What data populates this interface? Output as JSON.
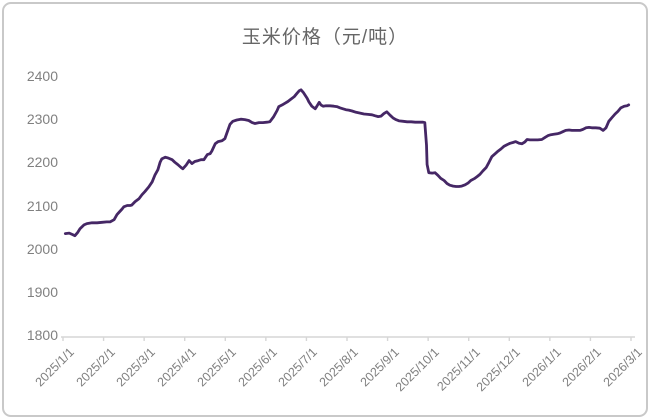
{
  "chart_data": {
    "type": "line",
    "title": "玉米价格（元/吨）",
    "series_name": "玉米价格",
    "unit": "元/吨",
    "line_color": "#452765",
    "axis_color": "#d6d6d6",
    "label_color": "#808080",
    "title_color": "#666666",
    "grid": false,
    "legend": "none",
    "ylim": [
      1800,
      2400
    ],
    "y_ticks": [
      2400,
      2300,
      2200,
      2100,
      2000,
      1900,
      1800
    ],
    "x_ticks": [
      "2025/1/1",
      "2025/2/1",
      "2025/3/1",
      "2025/4/1",
      "2025/5/1",
      "2025/6/1",
      "2025/7/1",
      "2025/8/1",
      "2025/9/1",
      "2025/10/1",
      "2025/11/1",
      "2025/12/1",
      "2026/1/1",
      "2026/2/1",
      "2026/3/1"
    ],
    "points": [
      [
        0.004,
        2035
      ],
      [
        0.011,
        2036
      ],
      [
        0.016,
        2033
      ],
      [
        0.021,
        2030
      ],
      [
        0.026,
        2038
      ],
      [
        0.03,
        2046
      ],
      [
        0.037,
        2055
      ],
      [
        0.042,
        2058
      ],
      [
        0.051,
        2060
      ],
      [
        0.06,
        2060
      ],
      [
        0.069,
        2061
      ],
      [
        0.077,
        2062
      ],
      [
        0.083,
        2062
      ],
      [
        0.09,
        2067
      ],
      [
        0.095,
        2079
      ],
      [
        0.1,
        2086
      ],
      [
        0.104,
        2092
      ],
      [
        0.107,
        2097
      ],
      [
        0.113,
        2100
      ],
      [
        0.118,
        2100
      ],
      [
        0.121,
        2101
      ],
      [
        0.127,
        2109
      ],
      [
        0.134,
        2116
      ],
      [
        0.139,
        2125
      ],
      [
        0.144,
        2132
      ],
      [
        0.151,
        2143
      ],
      [
        0.157,
        2155
      ],
      [
        0.162,
        2171
      ],
      [
        0.167,
        2183
      ],
      [
        0.171,
        2200
      ],
      [
        0.174,
        2208
      ],
      [
        0.18,
        2212
      ],
      [
        0.185,
        2210
      ],
      [
        0.192,
        2206
      ],
      [
        0.197,
        2200
      ],
      [
        0.202,
        2195
      ],
      [
        0.208,
        2188
      ],
      [
        0.211,
        2185
      ],
      [
        0.217,
        2194
      ],
      [
        0.222,
        2204
      ],
      [
        0.227,
        2197
      ],
      [
        0.232,
        2202
      ],
      [
        0.238,
        2204
      ],
      [
        0.243,
        2206
      ],
      [
        0.248,
        2206
      ],
      [
        0.254,
        2218
      ],
      [
        0.259,
        2220
      ],
      [
        0.262,
        2226
      ],
      [
        0.268,
        2243
      ],
      [
        0.273,
        2248
      ],
      [
        0.28,
        2250
      ],
      [
        0.285,
        2255
      ],
      [
        0.289,
        2270
      ],
      [
        0.294,
        2288
      ],
      [
        0.299,
        2295
      ],
      [
        0.306,
        2298
      ],
      [
        0.313,
        2300
      ],
      [
        0.32,
        2299
      ],
      [
        0.327,
        2297
      ],
      [
        0.333,
        2292
      ],
      [
        0.338,
        2290
      ],
      [
        0.345,
        2292
      ],
      [
        0.352,
        2292
      ],
      [
        0.359,
        2293
      ],
      [
        0.364,
        2294
      ],
      [
        0.371,
        2306
      ],
      [
        0.377,
        2320
      ],
      [
        0.38,
        2329
      ],
      [
        0.386,
        2333
      ],
      [
        0.391,
        2337
      ],
      [
        0.396,
        2341
      ],
      [
        0.401,
        2346
      ],
      [
        0.407,
        2352
      ],
      [
        0.412,
        2360
      ],
      [
        0.416,
        2366
      ],
      [
        0.419,
        2368
      ],
      [
        0.423,
        2362
      ],
      [
        0.426,
        2356
      ],
      [
        0.43,
        2348
      ],
      [
        0.433,
        2340
      ],
      [
        0.438,
        2330
      ],
      [
        0.444,
        2324
      ],
      [
        0.447,
        2330
      ],
      [
        0.451,
        2339
      ],
      [
        0.454,
        2333
      ],
      [
        0.458,
        2330
      ],
      [
        0.463,
        2331
      ],
      [
        0.47,
        2331
      ],
      [
        0.477,
        2330
      ],
      [
        0.482,
        2329
      ],
      [
        0.488,
        2326
      ],
      [
        0.493,
        2324
      ],
      [
        0.498,
        2322
      ],
      [
        0.503,
        2321
      ],
      [
        0.509,
        2319
      ],
      [
        0.516,
        2316
      ],
      [
        0.523,
        2314
      ],
      [
        0.53,
        2312
      ],
      [
        0.537,
        2311
      ],
      [
        0.544,
        2310
      ],
      [
        0.549,
        2308
      ],
      [
        0.555,
        2306
      ],
      [
        0.56,
        2307
      ],
      [
        0.565,
        2313
      ],
      [
        0.57,
        2317
      ],
      [
        0.576,
        2309
      ],
      [
        0.581,
        2303
      ],
      [
        0.586,
        2299
      ],
      [
        0.592,
        2296
      ],
      [
        0.599,
        2295
      ],
      [
        0.606,
        2294
      ],
      [
        0.613,
        2294
      ],
      [
        0.62,
        2293
      ],
      [
        0.627,
        2293
      ],
      [
        0.634,
        2293
      ],
      [
        0.637,
        2292
      ],
      [
        0.64,
        2240
      ],
      [
        0.641,
        2195
      ],
      [
        0.644,
        2176
      ],
      [
        0.65,
        2175
      ],
      [
        0.655,
        2176
      ],
      [
        0.66,
        2170
      ],
      [
        0.665,
        2163
      ],
      [
        0.671,
        2158
      ],
      [
        0.676,
        2151
      ],
      [
        0.681,
        2147
      ],
      [
        0.687,
        2145
      ],
      [
        0.692,
        2144
      ],
      [
        0.697,
        2144
      ],
      [
        0.702,
        2145
      ],
      [
        0.708,
        2148
      ],
      [
        0.713,
        2152
      ],
      [
        0.718,
        2158
      ],
      [
        0.724,
        2162
      ],
      [
        0.729,
        2167
      ],
      [
        0.734,
        2172
      ],
      [
        0.739,
        2180
      ],
      [
        0.745,
        2188
      ],
      [
        0.75,
        2200
      ],
      [
        0.755,
        2213
      ],
      [
        0.761,
        2220
      ],
      [
        0.766,
        2226
      ],
      [
        0.771,
        2231
      ],
      [
        0.776,
        2237
      ],
      [
        0.782,
        2241
      ],
      [
        0.787,
        2244
      ],
      [
        0.792,
        2246
      ],
      [
        0.797,
        2248
      ],
      [
        0.803,
        2244
      ],
      [
        0.808,
        2243
      ],
      [
        0.813,
        2247
      ],
      [
        0.817,
        2253
      ],
      [
        0.822,
        2252
      ],
      [
        0.829,
        2252
      ],
      [
        0.836,
        2252
      ],
      [
        0.843,
        2253
      ],
      [
        0.849,
        2258
      ],
      [
        0.854,
        2262
      ],
      [
        0.859,
        2264
      ],
      [
        0.864,
        2265
      ],
      [
        0.87,
        2266
      ],
      [
        0.875,
        2268
      ],
      [
        0.88,
        2271
      ],
      [
        0.885,
        2274
      ],
      [
        0.891,
        2275
      ],
      [
        0.896,
        2274
      ],
      [
        0.903,
        2274
      ],
      [
        0.91,
        2274
      ],
      [
        0.915,
        2276
      ],
      [
        0.921,
        2280
      ],
      [
        0.926,
        2281
      ],
      [
        0.931,
        2280
      ],
      [
        0.938,
        2280
      ],
      [
        0.945,
        2279
      ],
      [
        0.951,
        2274
      ],
      [
        0.956,
        2280
      ],
      [
        0.961,
        2295
      ],
      [
        0.966,
        2303
      ],
      [
        0.972,
        2312
      ],
      [
        0.977,
        2318
      ],
      [
        0.982,
        2326
      ],
      [
        0.988,
        2330
      ],
      [
        0.993,
        2331
      ],
      [
        0.996,
        2333
      ]
    ]
  }
}
